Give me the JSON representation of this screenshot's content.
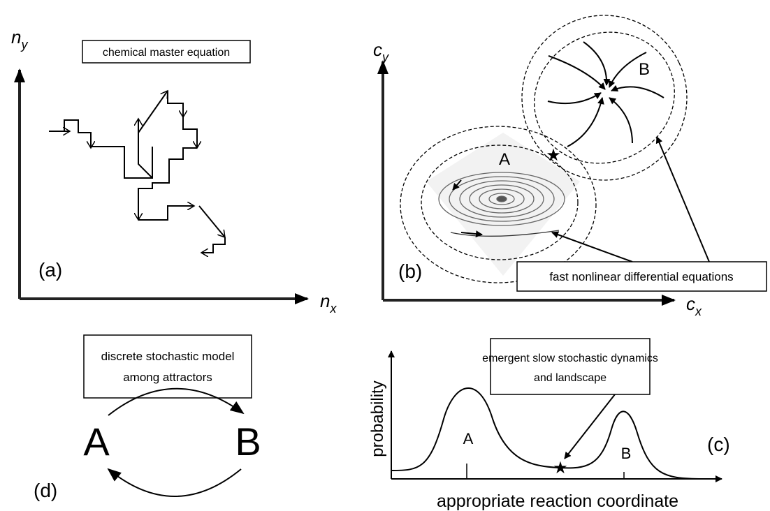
{
  "panel_a": {
    "y_axis": {
      "symbol": "n",
      "subscript": "y"
    },
    "x_axis": {
      "symbol": "n",
      "subscript": "x"
    },
    "box": "chemical master equation",
    "label": "(a)"
  },
  "panel_b": {
    "y_axis": {
      "symbol": "c",
      "subscript": "y"
    },
    "x_axis": {
      "symbol": "c",
      "subscript": "x"
    },
    "attractor_a": "A",
    "attractor_b": "B",
    "box": "fast nonlinear differential equations",
    "label": "(b)"
  },
  "panel_c": {
    "box": [
      "emergent slow stochastic dynamics",
      "and landscape"
    ],
    "y_axis": "probability",
    "x_axis": "appropriate reaction coordinate",
    "peak_a": "A",
    "peak_b": "B",
    "label": "(c)"
  },
  "panel_d": {
    "box": [
      "discrete stochastic model",
      "among attractors"
    ],
    "state_a": "A",
    "state_b": "B",
    "label": "(d)"
  }
}
